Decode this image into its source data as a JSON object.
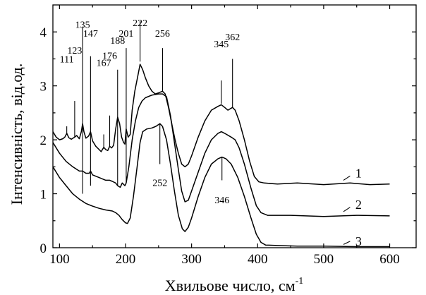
{
  "chart_data": {
    "type": "line",
    "xlabel": "Хвильове число, см",
    "xlabel_sup": "-1",
    "ylabel": "Інтенсивність, від.од.",
    "xlim": [
      90,
      640
    ],
    "ylim": [
      0,
      4.5
    ],
    "xticks": [
      100,
      200,
      300,
      400,
      500,
      600
    ],
    "yticks": [
      0,
      1,
      2,
      3,
      4
    ],
    "xtick_labels": [
      "100",
      "200",
      "300",
      "400",
      "500",
      "600"
    ],
    "ytick_labels": [
      "0",
      "1",
      "2",
      "3",
      "4"
    ],
    "grid": false,
    "series": [
      {
        "name": "1",
        "label_at": [
          548,
          1.38
        ],
        "points": [
          [
            90,
            2.15
          ],
          [
            95,
            2.05
          ],
          [
            100,
            2.0
          ],
          [
            105,
            2.02
          ],
          [
            108,
            2.05
          ],
          [
            111,
            2.12
          ],
          [
            114,
            2.04
          ],
          [
            118,
            2.01
          ],
          [
            123,
            2.05
          ],
          [
            126,
            2.08
          ],
          [
            130,
            2.02
          ],
          [
            133,
            2.15
          ],
          [
            135,
            2.3
          ],
          [
            137,
            2.15
          ],
          [
            140,
            2.03
          ],
          [
            144,
            2.07
          ],
          [
            147,
            2.15
          ],
          [
            150,
            1.98
          ],
          [
            155,
            1.88
          ],
          [
            160,
            1.82
          ],
          [
            163,
            1.78
          ],
          [
            167,
            1.86
          ],
          [
            170,
            1.82
          ],
          [
            173,
            1.8
          ],
          [
            176,
            1.88
          ],
          [
            179,
            1.85
          ],
          [
            182,
            1.9
          ],
          [
            185,
            2.2
          ],
          [
            188,
            2.42
          ],
          [
            191,
            2.3
          ],
          [
            194,
            2.05
          ],
          [
            197,
            1.95
          ],
          [
            199,
            1.92
          ],
          [
            201,
            2.2
          ],
          [
            204,
            2.05
          ],
          [
            207,
            2.1
          ],
          [
            210,
            2.55
          ],
          [
            214,
            2.9
          ],
          [
            218,
            3.15
          ],
          [
            222,
            3.4
          ],
          [
            226,
            3.3
          ],
          [
            230,
            3.15
          ],
          [
            235,
            3.0
          ],
          [
            240,
            2.9
          ],
          [
            245,
            2.85
          ],
          [
            250,
            2.87
          ],
          [
            256,
            2.9
          ],
          [
            260,
            2.85
          ],
          [
            265,
            2.6
          ],
          [
            270,
            2.3
          ],
          [
            275,
            2.0
          ],
          [
            280,
            1.75
          ],
          [
            285,
            1.55
          ],
          [
            290,
            1.5
          ],
          [
            295,
            1.55
          ],
          [
            300,
            1.7
          ],
          [
            310,
            2.05
          ],
          [
            320,
            2.35
          ],
          [
            330,
            2.55
          ],
          [
            340,
            2.62
          ],
          [
            345,
            2.65
          ],
          [
            350,
            2.6
          ],
          [
            355,
            2.55
          ],
          [
            362,
            2.6
          ],
          [
            366,
            2.55
          ],
          [
            372,
            2.35
          ],
          [
            380,
            2.0
          ],
          [
            388,
            1.6
          ],
          [
            395,
            1.32
          ],
          [
            402,
            1.22
          ],
          [
            410,
            1.2
          ],
          [
            430,
            1.18
          ],
          [
            460,
            1.2
          ],
          [
            500,
            1.17
          ],
          [
            540,
            1.2
          ],
          [
            570,
            1.17
          ],
          [
            600,
            1.18
          ]
        ]
      },
      {
        "name": "2",
        "label_at": [
          548,
          0.8
        ],
        "points": [
          [
            90,
            1.95
          ],
          [
            100,
            1.75
          ],
          [
            110,
            1.6
          ],
          [
            120,
            1.5
          ],
          [
            130,
            1.42
          ],
          [
            135,
            1.42
          ],
          [
            140,
            1.38
          ],
          [
            145,
            1.38
          ],
          [
            147,
            1.42
          ],
          [
            150,
            1.35
          ],
          [
            160,
            1.3
          ],
          [
            170,
            1.25
          ],
          [
            176,
            1.25
          ],
          [
            180,
            1.23
          ],
          [
            185,
            1.2
          ],
          [
            188,
            1.15
          ],
          [
            192,
            1.12
          ],
          [
            195,
            1.2
          ],
          [
            199,
            1.15
          ],
          [
            201,
            1.2
          ],
          [
            205,
            1.5
          ],
          [
            210,
            2.0
          ],
          [
            215,
            2.35
          ],
          [
            220,
            2.6
          ],
          [
            225,
            2.72
          ],
          [
            230,
            2.78
          ],
          [
            240,
            2.83
          ],
          [
            250,
            2.85
          ],
          [
            256,
            2.85
          ],
          [
            262,
            2.8
          ],
          [
            268,
            2.45
          ],
          [
            274,
            1.95
          ],
          [
            280,
            1.45
          ],
          [
            285,
            1.05
          ],
          [
            290,
            0.85
          ],
          [
            295,
            0.88
          ],
          [
            300,
            1.05
          ],
          [
            310,
            1.4
          ],
          [
            320,
            1.75
          ],
          [
            330,
            2.0
          ],
          [
            340,
            2.12
          ],
          [
            345,
            2.15
          ],
          [
            350,
            2.12
          ],
          [
            360,
            2.05
          ],
          [
            366,
            2.0
          ],
          [
            372,
            1.85
          ],
          [
            380,
            1.55
          ],
          [
            390,
            1.1
          ],
          [
            398,
            0.78
          ],
          [
            405,
            0.65
          ],
          [
            415,
            0.6
          ],
          [
            450,
            0.6
          ],
          [
            500,
            0.58
          ],
          [
            550,
            0.6
          ],
          [
            600,
            0.59
          ]
        ]
      },
      {
        "name": "3",
        "label_at": [
          548,
          0.12
        ],
        "points": [
          [
            90,
            1.5
          ],
          [
            100,
            1.3
          ],
          [
            110,
            1.15
          ],
          [
            120,
            1.0
          ],
          [
            130,
            0.9
          ],
          [
            140,
            0.82
          ],
          [
            150,
            0.77
          ],
          [
            160,
            0.73
          ],
          [
            170,
            0.7
          ],
          [
            180,
            0.68
          ],
          [
            185,
            0.65
          ],
          [
            190,
            0.6
          ],
          [
            195,
            0.52
          ],
          [
            200,
            0.46
          ],
          [
            203,
            0.45
          ],
          [
            207,
            0.55
          ],
          [
            212,
            0.95
          ],
          [
            218,
            1.55
          ],
          [
            222,
            1.95
          ],
          [
            226,
            2.15
          ],
          [
            232,
            2.2
          ],
          [
            240,
            2.22
          ],
          [
            246,
            2.25
          ],
          [
            252,
            2.3
          ],
          [
            256,
            2.25
          ],
          [
            262,
            2.0
          ],
          [
            268,
            1.55
          ],
          [
            274,
            1.05
          ],
          [
            280,
            0.6
          ],
          [
            286,
            0.35
          ],
          [
            290,
            0.3
          ],
          [
            295,
            0.38
          ],
          [
            300,
            0.55
          ],
          [
            310,
            0.95
          ],
          [
            320,
            1.3
          ],
          [
            330,
            1.55
          ],
          [
            340,
            1.65
          ],
          [
            346,
            1.68
          ],
          [
            352,
            1.65
          ],
          [
            360,
            1.55
          ],
          [
            370,
            1.3
          ],
          [
            380,
            0.95
          ],
          [
            390,
            0.55
          ],
          [
            398,
            0.25
          ],
          [
            405,
            0.1
          ],
          [
            412,
            0.05
          ],
          [
            430,
            0.04
          ],
          [
            460,
            0.03
          ],
          [
            500,
            0.03
          ],
          [
            550,
            0.02
          ],
          [
            600,
            0.02
          ]
        ]
      }
    ],
    "annotations": [
      {
        "label": "111",
        "x": 111,
        "y_top": 2.25,
        "y_bottom": 2.12,
        "label_y": 4.55,
        "side": "top"
      },
      {
        "label": "123",
        "x": 123,
        "y_top": 2.72,
        "y_bottom": 2.05,
        "label_y": 5.05,
        "side": "top"
      },
      {
        "label": "135",
        "x": 135,
        "y_top": 4.1,
        "y_bottom": 1.0,
        "label_y": 6.5,
        "side": "top"
      },
      {
        "label": "147",
        "x": 147,
        "y_top": 3.55,
        "y_bottom": 1.15,
        "label_y": 6.0,
        "side": "top"
      },
      {
        "label": "167",
        "x": 167,
        "y_top": 2.1,
        "y_bottom": 1.86,
        "label_y": 4.35,
        "side": "top"
      },
      {
        "label": "176",
        "x": 176,
        "y_top": 2.45,
        "y_bottom": 1.88,
        "label_y": 4.75,
        "side": "top"
      },
      {
        "label": "188",
        "x": 188,
        "y_top": 3.3,
        "y_bottom": 1.15,
        "label_y": 5.6,
        "side": "top"
      },
      {
        "label": "201",
        "x": 201,
        "y_top": 3.7,
        "y_bottom": 1.2,
        "label_y": 6.0,
        "side": "top"
      },
      {
        "label": "222",
        "x": 222,
        "y_top": 4.2,
        "y_bottom": 3.45,
        "label_y": 6.6,
        "side": "top"
      },
      {
        "label": "256",
        "x": 256,
        "y_top": 3.7,
        "y_bottom": 2.9,
        "label_y": 6.0,
        "side": "top"
      },
      {
        "label": "345",
        "x": 345,
        "y_top": 3.1,
        "y_bottom": 2.67,
        "label_y": 5.4,
        "side": "top"
      },
      {
        "label": "362",
        "x": 362,
        "y_top": 3.5,
        "y_bottom": 2.6,
        "label_y": 5.8,
        "side": "top"
      },
      {
        "label": "252",
        "x": 252,
        "y_top": 2.3,
        "y_bottom": 1.55,
        "label_y": 1.3,
        "side": "bottom"
      },
      {
        "label": "346",
        "x": 346,
        "y_top": 1.68,
        "y_bottom": 1.25,
        "label_y": 0.98,
        "side": "bottom"
      }
    ],
    "curve_label_ticks": [
      {
        "x1": 530,
        "y1": 1.25,
        "x2": 540,
        "y2": 1.33
      },
      {
        "x1": 530,
        "y1": 0.67,
        "x2": 540,
        "y2": 0.75
      },
      {
        "x1": 530,
        "y1": 0.06,
        "x2": 540,
        "y2": 0.12
      }
    ]
  }
}
